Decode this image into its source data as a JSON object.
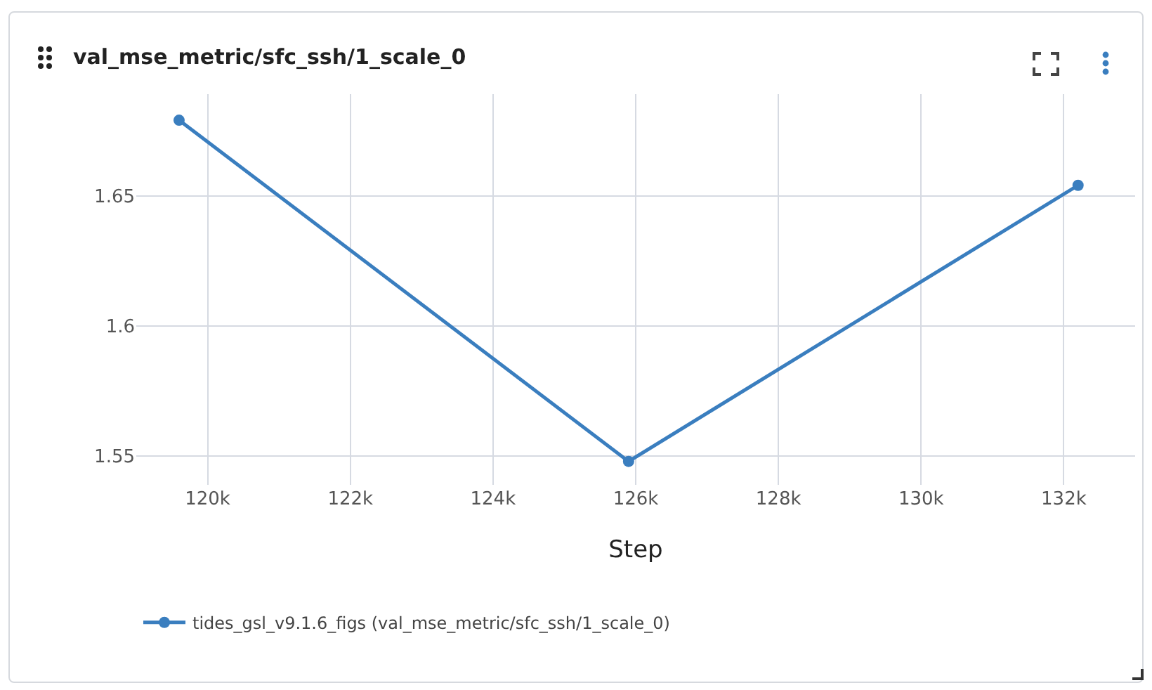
{
  "chart_data": {
    "type": "line",
    "title": "val_mse_metric/sfc_ssh/1_scale_0",
    "xlabel": "Step",
    "x": [
      119600,
      125900,
      132200
    ],
    "series": [
      {
        "name": "tides_gsl_v9.1.6_figs (val_mse_metric/sfc_ssh/1_scale_0)",
        "color": "#3a7ebf",
        "values": [
          1.679,
          1.548,
          1.654
        ]
      }
    ],
    "xlim": [
      119000,
      133000
    ],
    "xticks": [
      {
        "value": 120000,
        "label": "120k"
      },
      {
        "value": 122000,
        "label": "122k"
      },
      {
        "value": 124000,
        "label": "124k"
      },
      {
        "value": 126000,
        "label": "126k"
      },
      {
        "value": 128000,
        "label": "128k"
      },
      {
        "value": 130000,
        "label": "130k"
      },
      {
        "value": 132000,
        "label": "132k"
      }
    ],
    "ylim": [
      1.539,
      1.689
    ],
    "yticks": [
      1.55,
      1.6,
      1.65
    ],
    "grid": true,
    "legend": "bottom",
    "marker": "circle",
    "line_style": "solid"
  }
}
